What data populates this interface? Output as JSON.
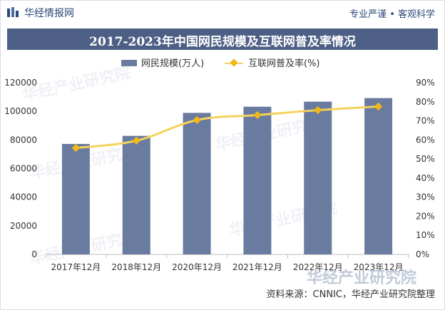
{
  "header": {
    "brand": "华经情报网",
    "slogan": "专业严谨 • 客观科学"
  },
  "watermark": {
    "text": "华经产业研究院"
  },
  "chart_data": {
    "type": "bar",
    "title": "2017-2023年中国网民规模及互联网普及率情况",
    "categories": [
      "2017年12月",
      "2018年12月",
      "2020年12月",
      "2021年12月",
      "2022年12月",
      "2023年12月"
    ],
    "series": [
      {
        "name": "网民规模(万人)",
        "type": "bar",
        "axis": "left",
        "color": "#6a7ba0",
        "values": [
          77198,
          82851,
          98899,
          103195,
          106744,
          109220
        ]
      },
      {
        "name": "互联网普及率(%)",
        "type": "line",
        "axis": "right",
        "color": "#f5d25c",
        "marker_color": "#f0b917",
        "values": [
          55.8,
          59.6,
          70.4,
          73.0,
          75.6,
          77.5
        ]
      }
    ],
    "y_left": {
      "min": 0,
      "max": 120000,
      "ticks": [
        0,
        20000,
        40000,
        60000,
        80000,
        100000,
        120000
      ]
    },
    "y_right": {
      "min": 0,
      "max": 90,
      "ticks": [
        "0%",
        "10%",
        "20%",
        "30%",
        "40%",
        "50%",
        "60%",
        "70%",
        "80%",
        "90%"
      ]
    },
    "legend_position": "top-center",
    "grid": false
  },
  "source": "资料来源：CNNIC，华经产业研究院整理"
}
